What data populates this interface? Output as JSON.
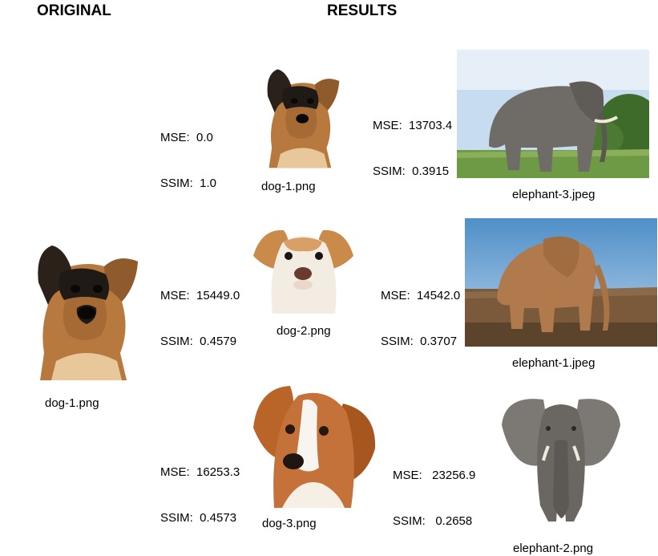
{
  "headings": {
    "original": "ORIGINAL",
    "results": "RESULTS"
  },
  "original": {
    "file": "dog-1.png"
  },
  "results": [
    {
      "file": "dog-1.png",
      "mse": "MSE:  0.0",
      "ssim": "SSIM:  1.0"
    },
    {
      "file": "elephant-3.jpeg",
      "mse": "MSE:  13703.4",
      "ssim": "SSIM:  0.3915"
    },
    {
      "file": "dog-2.png",
      "mse": "MSE:  15449.0",
      "ssim": "SSIM:  0.4579"
    },
    {
      "file": "elephant-1.jpeg",
      "mse": "MSE:  14542.0",
      "ssim": "SSIM:  0.3707"
    },
    {
      "file": "dog-3.png",
      "mse": "MSE:  16253.3",
      "ssim": "SSIM:  0.4573"
    },
    {
      "file": "elephant-2.png",
      "mse": "MSE:   23256.9",
      "ssim": "SSIM:   0.2658"
    }
  ],
  "colors": {
    "shepherd_black": "#1f1a16",
    "shepherd_tan": "#b7793e",
    "elephant_grey": "#6f6c68",
    "savanna_sky": "#c7dcef",
    "grass": "#6f9a45",
    "sunset_ground": "#7a5a3a",
    "setter_brown": "#b9652a"
  }
}
